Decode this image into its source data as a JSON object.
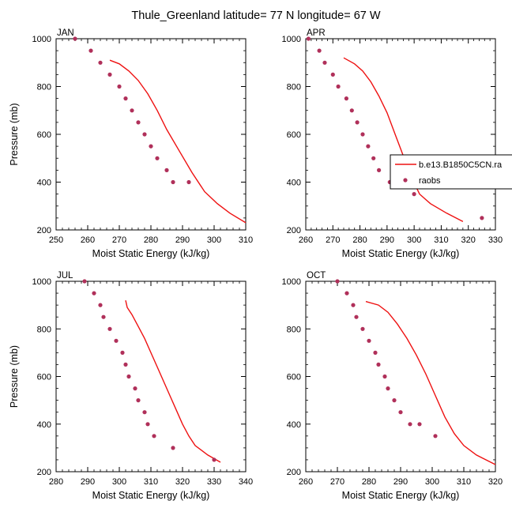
{
  "figure_title": "Thule_Greenland  latitude= 77 N longitude= 67 W",
  "legend": {
    "model_label": "b.e13.B1850C5CN.ra",
    "obs_label": "raobs"
  },
  "colors": {
    "model": "#ee1111",
    "obs": "#b0305a"
  },
  "chart_data": [
    {
      "type": "line",
      "panel_label": "JAN",
      "xlabel": "Moist Static Energy (kJ/kg)",
      "ylabel": "Pressure (mb)",
      "xlim": [
        250,
        310
      ],
      "xticks": [
        250,
        260,
        270,
        280,
        290,
        300,
        310
      ],
      "ylim": [
        1000,
        200
      ],
      "yticks": [
        1000,
        800,
        600,
        400,
        200
      ],
      "series": [
        {
          "kind": "line",
          "points": [
            [
              267,
              910
            ],
            [
              270,
              895
            ],
            [
              273,
              865
            ],
            [
              276,
              825
            ],
            [
              279,
              770
            ],
            [
              282,
              700
            ],
            [
              285,
              620
            ],
            [
              289,
              530
            ],
            [
              293,
              440
            ],
            [
              297,
              360
            ],
            [
              301,
              310
            ],
            [
              305,
              270
            ],
            [
              310,
              230
            ]
          ]
        },
        {
          "kind": "scatter",
          "points": [
            [
              256,
              1000
            ],
            [
              261,
              950
            ],
            [
              264,
              900
            ],
            [
              267,
              850
            ],
            [
              270,
              800
            ],
            [
              272,
              750
            ],
            [
              274,
              700
            ],
            [
              276,
              650
            ],
            [
              278,
              600
            ],
            [
              280,
              550
            ],
            [
              282,
              500
            ],
            [
              285,
              450
            ],
            [
              287,
              400
            ],
            [
              292,
              400
            ]
          ]
        }
      ]
    },
    {
      "type": "line",
      "panel_label": "APR",
      "xlabel": "Moist Static Energy (kJ/kg)",
      "ylabel": "",
      "xlim": [
        260,
        330
      ],
      "xticks": [
        260,
        270,
        280,
        290,
        300,
        310,
        320,
        330
      ],
      "ylim": [
        1000,
        200
      ],
      "yticks": [
        1000,
        800,
        600,
        400,
        200
      ],
      "series": [
        {
          "kind": "line",
          "points": [
            [
              274,
              920
            ],
            [
              278,
              895
            ],
            [
              281,
              865
            ],
            [
              284,
              820
            ],
            [
              287,
              760
            ],
            [
              290,
              690
            ],
            [
              293,
              600
            ],
            [
              296,
              510
            ],
            [
              299,
              420
            ],
            [
              302,
              350
            ],
            [
              306,
              310
            ],
            [
              312,
              270
            ],
            [
              318,
              235
            ]
          ]
        },
        {
          "kind": "scatter",
          "points": [
            [
              261,
              1000
            ],
            [
              265,
              950
            ],
            [
              267,
              900
            ],
            [
              270,
              850
            ],
            [
              272,
              800
            ],
            [
              275,
              750
            ],
            [
              277,
              700
            ],
            [
              279,
              650
            ],
            [
              281,
              600
            ],
            [
              283,
              550
            ],
            [
              285,
              500
            ],
            [
              287,
              450
            ],
            [
              291,
              400
            ],
            [
              294,
              400
            ],
            [
              300,
              350
            ],
            [
              325,
              250
            ]
          ]
        }
      ]
    },
    {
      "type": "line",
      "panel_label": "JUL",
      "xlabel": "Moist Static Energy (kJ/kg)",
      "ylabel": "Pressure (mb)",
      "xlim": [
        280,
        340
      ],
      "xticks": [
        280,
        290,
        300,
        310,
        320,
        330,
        340
      ],
      "ylim": [
        1000,
        200
      ],
      "yticks": [
        1000,
        800,
        600,
        400,
        200
      ],
      "series": [
        {
          "kind": "line",
          "points": [
            [
              302,
              920
            ],
            [
              302.5,
              890
            ],
            [
              304,
              860
            ],
            [
              306,
              810
            ],
            [
              308,
              760
            ],
            [
              310,
              700
            ],
            [
              312,
              640
            ],
            [
              314,
              580
            ],
            [
              316,
              520
            ],
            [
              318,
              460
            ],
            [
              320,
              400
            ],
            [
              322,
              350
            ],
            [
              324,
              310
            ],
            [
              328,
              270
            ],
            [
              332,
              240
            ]
          ]
        },
        {
          "kind": "scatter",
          "points": [
            [
              289,
              1000
            ],
            [
              292,
              950
            ],
            [
              294,
              900
            ],
            [
              295,
              850
            ],
            [
              297,
              800
            ],
            [
              299,
              750
            ],
            [
              301,
              700
            ],
            [
              302,
              650
            ],
            [
              303,
              600
            ],
            [
              305,
              550
            ],
            [
              306,
              500
            ],
            [
              308,
              450
            ],
            [
              309,
              400
            ],
            [
              311,
              350
            ],
            [
              317,
              300
            ],
            [
              330,
              250
            ]
          ]
        }
      ]
    },
    {
      "type": "line",
      "panel_label": "OCT",
      "xlabel": "Moist Static Energy (kJ/kg)",
      "ylabel": "",
      "xlim": [
        260,
        320
      ],
      "xticks": [
        260,
        270,
        280,
        290,
        300,
        310,
        320
      ],
      "ylim": [
        1000,
        200
      ],
      "yticks": [
        1000,
        800,
        600,
        400,
        200
      ],
      "series": [
        {
          "kind": "line",
          "points": [
            [
              279,
              915
            ],
            [
              283,
              900
            ],
            [
              286,
              870
            ],
            [
              289,
              820
            ],
            [
              292,
              760
            ],
            [
              295,
              690
            ],
            [
              298,
              610
            ],
            [
              301,
              520
            ],
            [
              304,
              430
            ],
            [
              307,
              360
            ],
            [
              310,
              310
            ],
            [
              314,
              270
            ],
            [
              320,
              230
            ]
          ]
        },
        {
          "kind": "scatter",
          "points": [
            [
              270,
              1000
            ],
            [
              273,
              950
            ],
            [
              275,
              900
            ],
            [
              276,
              850
            ],
            [
              278,
              800
            ],
            [
              280,
              750
            ],
            [
              282,
              700
            ],
            [
              283,
              650
            ],
            [
              285,
              600
            ],
            [
              286,
              550
            ],
            [
              288,
              500
            ],
            [
              290,
              450
            ],
            [
              293,
              400
            ],
            [
              296,
              400
            ],
            [
              301,
              350
            ]
          ]
        }
      ]
    }
  ]
}
